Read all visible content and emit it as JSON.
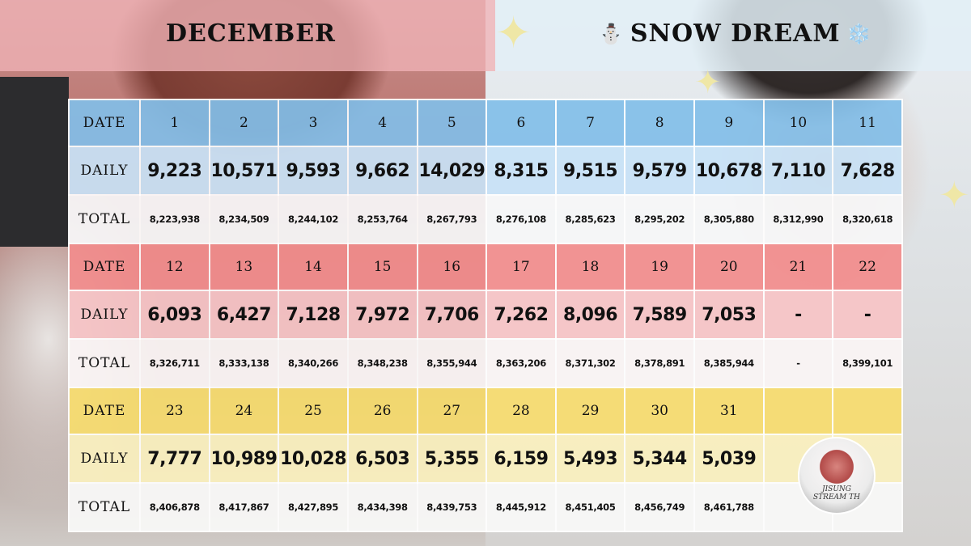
{
  "header": {
    "month": "DECEMBER",
    "theme": "SNOW DREAM",
    "theme_prefix_emoji": "⛄",
    "theme_suffix_emoji": "❄️"
  },
  "labels": {
    "date": "DATE",
    "daily": "DAILY",
    "total": "TOTAL"
  },
  "weeks": [
    {
      "dates": [
        "1",
        "2",
        "3",
        "4",
        "5",
        "6",
        "7",
        "8",
        "9",
        "10",
        "11"
      ],
      "daily": [
        "9,223",
        "10,571",
        "9,593",
        "9,662",
        "14,029",
        "8,315",
        "9,515",
        "9,579",
        "10,678",
        "7,110",
        "7,628"
      ],
      "total": [
        "8,223,938",
        "8,234,509",
        "8,244,102",
        "8,253,764",
        "8,267,793",
        "8,276,108",
        "8,285,623",
        "8,295,202",
        "8,305,880",
        "8,312,990",
        "8,320,618"
      ]
    },
    {
      "dates": [
        "12",
        "13",
        "14",
        "15",
        "16",
        "17",
        "18",
        "19",
        "20",
        "21",
        "22"
      ],
      "daily": [
        "6,093",
        "6,427",
        "7,128",
        "7,972",
        "7,706",
        "7,262",
        "8,096",
        "7,589",
        "7,053",
        "-",
        "-"
      ],
      "total": [
        "8,326,711",
        "8,333,138",
        "8,340,266",
        "8,348,238",
        "8,355,944",
        "8,363,206",
        "8,371,302",
        "8,378,891",
        "8,385,944",
        "-",
        "8,399,101"
      ]
    },
    {
      "dates": [
        "23",
        "24",
        "25",
        "26",
        "27",
        "28",
        "29",
        "30",
        "31",
        "",
        ""
      ],
      "daily": [
        "7,777",
        "10,989",
        "10,028",
        "6,503",
        "5,355",
        "6,159",
        "5,493",
        "5,344",
        "5,039",
        "",
        ""
      ],
      "total": [
        "8,406,878",
        "8,417,867",
        "8,427,895",
        "8,434,398",
        "8,439,753",
        "8,445,912",
        "8,451,405",
        "8,456,749",
        "8,461,788",
        "",
        ""
      ]
    }
  ],
  "logo": {
    "line1": "JISUNG",
    "line2": "STREAM TH"
  },
  "colors": {
    "blue": "#82bee8",
    "red": "#f28c8c",
    "yellow": "#f6dc6e"
  }
}
